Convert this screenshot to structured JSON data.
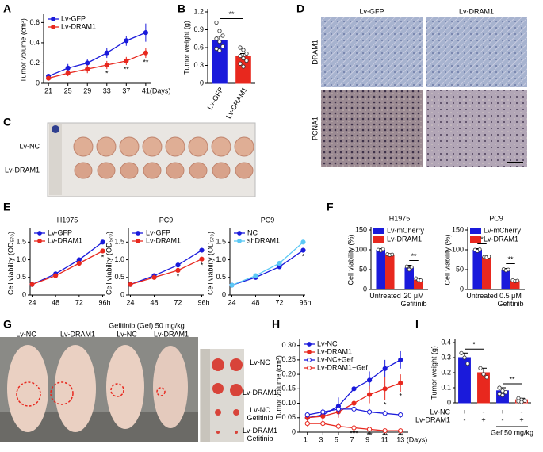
{
  "panel_letters": [
    "A",
    "B",
    "C",
    "D",
    "E",
    "F",
    "G",
    "H",
    "I"
  ],
  "chart_data": [
    {
      "type": "line",
      "ylabel": "Tumor volume (cm³)",
      "x": [
        21,
        25,
        29,
        33,
        37,
        41
      ],
      "xlim": [
        20,
        42
      ],
      "xticks": [
        21,
        25,
        29,
        33,
        37,
        {
          "value": 41,
          "label": "41(Days)"
        }
      ],
      "ylim": [
        0,
        0.65
      ],
      "yticks": [
        0,
        0.2,
        0.4,
        0.6
      ],
      "legend": "upper left",
      "series": [
        {
          "name": "Lv-GFP",
          "color": "#1a1adb",
          "marker": "filled",
          "values": [
            0.07,
            0.15,
            0.2,
            0.3,
            0.42,
            0.5
          ],
          "errors": [
            0.02,
            0.04,
            0.04,
            0.05,
            0.05,
            0.09
          ]
        },
        {
          "name": "Lv-DRAM1",
          "color": "#e8281e",
          "marker": "filled",
          "values": [
            0.05,
            0.1,
            0.14,
            0.18,
            0.22,
            0.3
          ],
          "errors": [
            0.02,
            0.03,
            0.04,
            0.04,
            0.04,
            0.05
          ]
        }
      ],
      "annotations": [
        {
          "text": "*",
          "x": 33,
          "series": 1
        },
        {
          "text": "**",
          "x": 37,
          "series": 1
        },
        {
          "text": "**",
          "x": 41,
          "series": 1
        }
      ]
    },
    {
      "type": "bar",
      "ylabel": "Tumor weight (g)",
      "categories": [
        "Lv-GFP",
        "Lv-DRAM1"
      ],
      "values": [
        0.72,
        0.45
      ],
      "errors": [
        0.07,
        0.05
      ],
      "colors": [
        "#1a1adb",
        "#e8281e"
      ],
      "open": [
        false,
        false
      ],
      "points": [
        [
          1.02,
          0.88,
          0.8,
          0.75,
          0.7,
          0.62,
          0.58,
          0.55
        ],
        [
          0.6,
          0.56,
          0.5,
          0.46,
          0.42,
          0.38,
          0.33,
          0.28
        ]
      ],
      "ylim": [
        0,
        1.2
      ],
      "yticks": [
        0,
        0.3,
        0.6,
        0.9,
        1.2
      ],
      "annotations": [
        {
          "text": "**",
          "between": [
            0,
            1
          ]
        }
      ]
    },
    {
      "type": "line",
      "title": "H1975",
      "ylabel": "Cell viability (OD₅₇₀)",
      "x": [
        24,
        48,
        72,
        96
      ],
      "xlim": [
        22,
        98
      ],
      "xticks": [
        24,
        48,
        72,
        {
          "value": 96,
          "label": "96h"
        }
      ],
      "ylim": [
        0,
        1.8
      ],
      "yticks": [
        0,
        0.5,
        {
          "value": 1,
          "label": "1.0"
        },
        1.5
      ],
      "legend": "upper left",
      "series": [
        {
          "name": "Lv-GFP",
          "color": "#1a1adb",
          "marker": "filled",
          "values": [
            0.3,
            0.6,
            1.0,
            1.5
          ],
          "errors": [
            0.02,
            0.03,
            0.05,
            0.06
          ]
        },
        {
          "name": "Lv-DRAM1",
          "color": "#e8281e",
          "marker": "filled",
          "values": [
            0.3,
            0.55,
            0.9,
            1.25
          ],
          "errors": [
            0.02,
            0.03,
            0.05,
            0.06
          ]
        }
      ],
      "annotations": [
        {
          "text": "*",
          "x": 96,
          "series": 1
        }
      ]
    },
    {
      "type": "line",
      "title": "PC9",
      "ylabel": "Cell viability (OD₅₇₀)",
      "x": [
        24,
        48,
        72,
        96
      ],
      "xlim": [
        22,
        98
      ],
      "xticks": [
        24,
        48,
        72,
        {
          "value": 96,
          "label": "96h"
        }
      ],
      "ylim": [
        0,
        1.8
      ],
      "yticks": [
        0,
        0.5,
        {
          "value": 1,
          "label": "1.0"
        },
        1.5
      ],
      "legend": "upper left",
      "series": [
        {
          "name": "Lv-GFP",
          "color": "#1a1adb",
          "marker": "filled",
          "values": [
            0.3,
            0.55,
            0.85,
            1.27
          ],
          "errors": [
            0.02,
            0.03,
            0.05,
            0.06
          ]
        },
        {
          "name": "Lv-DRAM1",
          "color": "#e8281e",
          "marker": "filled",
          "values": [
            0.3,
            0.5,
            0.7,
            1.02
          ],
          "errors": [
            0.02,
            0.03,
            0.05,
            0.06
          ]
        }
      ],
      "annotations": [
        {
          "text": "*",
          "x": 72,
          "series": 1
        },
        {
          "text": "*",
          "x": 96,
          "series": 1
        }
      ]
    },
    {
      "type": "line",
      "title": "PC9",
      "ylabel": "Cell viability (OD₅₇₀)",
      "x": [
        24,
        48,
        72,
        96
      ],
      "xlim": [
        22,
        98
      ],
      "xticks": [
        24,
        48,
        72,
        {
          "value": 96,
          "label": "96h"
        }
      ],
      "ylim": [
        0,
        1.8
      ],
      "yticks": [
        0,
        0.5,
        {
          "value": 1,
          "label": "1.0"
        },
        1.5
      ],
      "legend": "upper left",
      "series": [
        {
          "name": "NC",
          "color": "#1a1adb",
          "marker": "filled",
          "values": [
            0.28,
            0.5,
            0.8,
            1.27
          ],
          "errors": [
            0.02,
            0.03,
            0.05,
            0.06
          ]
        },
        {
          "name": "shDRAM1",
          "color": "#5bc8f5",
          "marker": "filled",
          "values": [
            0.28,
            0.55,
            0.9,
            1.5
          ],
          "errors": [
            0.02,
            0.03,
            0.05,
            0.06
          ]
        }
      ],
      "annotations": [
        {
          "text": "*",
          "x": 96,
          "series": 0
        }
      ]
    },
    {
      "type": "grouped_bar",
      "title": "H1975",
      "ylabel": "Cell viability (%)",
      "categories": [
        "Untreated",
        "20 μM\nGefitinib"
      ],
      "ylim": [
        0,
        150
      ],
      "yticks": [
        0,
        50,
        100,
        150
      ],
      "legend": "upper left",
      "series": [
        {
          "name": "Lv-mCherry",
          "color": "#1a1adb",
          "values": [
            100,
            55
          ],
          "errors": [
            3,
            6
          ],
          "points": [
            [
              100,
              98,
              102
            ],
            [
              58,
              50,
              56
            ]
          ]
        },
        {
          "name": "Lv-DRAM1",
          "color": "#e8281e",
          "values": [
            88,
            25
          ],
          "errors": [
            2,
            3
          ],
          "points": [
            [
              89,
              87,
              88
            ],
            [
              28,
              24,
              23
            ]
          ]
        }
      ],
      "annotations": [
        {
          "text": "**",
          "category": 1
        }
      ]
    },
    {
      "type": "grouped_bar",
      "title": "PC9",
      "ylabel": "Cell viability (%)",
      "categories": [
        "Untreated",
        "0.5 μM\nGefitinib"
      ],
      "ylim": [
        0,
        150
      ],
      "yticks": [
        0,
        50,
        100,
        150
      ],
      "legend": "upper left",
      "series": [
        {
          "name": "Lv-mCherry",
          "color": "#1a1adb",
          "values": [
            100,
            50
          ],
          "errors": [
            3,
            3
          ],
          "points": [
            [
              100,
              97,
              101
            ],
            [
              51,
              48,
              50
            ]
          ]
        },
        {
          "name": "Lv-DRAM1",
          "color": "#e8281e",
          "values": [
            82,
            22
          ],
          "errors": [
            2,
            2
          ],
          "points": [
            [
              82,
              81,
              83
            ],
            [
              23,
              21,
              22
            ]
          ]
        }
      ],
      "annotations": [
        {
          "text": "*",
          "category": 0
        },
        {
          "text": "**",
          "category": 1
        }
      ]
    },
    {
      "type": "line",
      "ylabel": "Tumor volume (cm³)",
      "x": [
        1,
        3,
        5,
        7,
        9,
        11,
        13
      ],
      "xlim": [
        0,
        14
      ],
      "xticks": [
        1,
        3,
        5,
        7,
        9,
        11,
        {
          "value": 13,
          "label": "13 (Days)"
        }
      ],
      "ylim": [
        0,
        0.31
      ],
      "yticks": [
        0,
        0.05,
        {
          "value": 0.1,
          "label": "0.10"
        },
        0.15,
        {
          "value": 0.2,
          "label": "0.20"
        },
        0.25,
        {
          "value": 0.3,
          "label": "0.30"
        }
      ],
      "legend": "upper left",
      "series": [
        {
          "name": "Lv-NC",
          "color": "#1a1adb",
          "marker": "filled",
          "values": [
            0.05,
            0.06,
            0.09,
            0.15,
            0.18,
            0.22,
            0.25
          ],
          "errors": [
            0.01,
            0.02,
            0.03,
            0.04,
            0.03,
            0.03,
            0.03
          ]
        },
        {
          "name": "Lv-DRAM1",
          "color": "#e8281e",
          "marker": "filled",
          "values": [
            0.05,
            0.055,
            0.07,
            0.1,
            0.13,
            0.15,
            0.17
          ],
          "errors": [
            0.01,
            0.02,
            0.02,
            0.03,
            0.03,
            0.04,
            0.03
          ]
        },
        {
          "name": "Lv-NC+Gef",
          "color": "#1a1adb",
          "marker": "open",
          "values": [
            0.06,
            0.07,
            0.08,
            0.08,
            0.07,
            0.065,
            0.06
          ],
          "errors": [
            0.01,
            0.01,
            0.02,
            0.02,
            0.01,
            0.01,
            0.01
          ]
        },
        {
          "name": "Lv-DRAM1+Gef",
          "color": "#e8281e",
          "marker": "open",
          "values": [
            0.03,
            0.03,
            0.02,
            0.015,
            0.01,
            0.005,
            0.005
          ],
          "errors": [
            0.01,
            0.01,
            0.01,
            0.005,
            0.005,
            0.003,
            0.003
          ]
        }
      ],
      "annotations": [
        {
          "text": "*",
          "x": 11,
          "series": 1
        },
        {
          "text": "*",
          "x": 13,
          "series": 1
        },
        {
          "text": "***",
          "x": 7,
          "series": 3
        },
        {
          "text": "**",
          "x": 9,
          "series": 3
        },
        {
          "text": "**",
          "x": 11,
          "series": 3
        },
        {
          "text": "**",
          "x": 13,
          "series": 3
        }
      ]
    },
    {
      "type": "bar",
      "ylabel": "Tumor weight (g)",
      "categories": [
        null,
        null,
        null,
        null
      ],
      "values": [
        0.3,
        0.2,
        0.08,
        0.02
      ],
      "errors": [
        0.03,
        0.03,
        0.02,
        0.01
      ],
      "colors": [
        "#1a1adb",
        "#e8281e",
        "#1a1adb",
        "#e8281e"
      ],
      "open": [
        false,
        false,
        false,
        true
      ],
      "points": [
        [
          0.33,
          0.3,
          0.26
        ],
        [
          0.23,
          0.19,
          0.17
        ],
        [
          0.1,
          0.08,
          0.07,
          0.06,
          0.05
        ],
        [
          0.03,
          0.02,
          0.015,
          0.01,
          0.005
        ]
      ],
      "ylim": [
        0,
        0.4
      ],
      "yticks": [
        0,
        0.1,
        0.2,
        0.3,
        0.4
      ],
      "annotations": [
        {
          "text": "*",
          "between": [
            0,
            1
          ]
        },
        {
          "text": "**",
          "between": [
            2,
            3
          ]
        }
      ],
      "x_table": {
        "rows": [
          {
            "label": "Lv-NC",
            "cells": [
              "+",
              "-",
              "+",
              "-"
            ]
          },
          {
            "label": "Lv-DRAM1",
            "cells": [
              "-",
              "+",
              "-",
              "+"
            ]
          }
        ],
        "group_label": "Gef 50 mg/kg"
      }
    }
  ],
  "photo_C": {
    "rows": [
      "Lv-NC",
      "Lv-DRAM1"
    ]
  },
  "photo_D": {
    "columns": [
      "Lv-GFP",
      "Lv-DRAM1"
    ],
    "rows": [
      "DRAM1",
      "PCNA1"
    ]
  },
  "photo_G": {
    "title": "Gefitinib (Gef) 50 mg/kg",
    "mice": [
      "Lv-NC",
      "Lv-DRAM1",
      "Lv-NC",
      "Lv-DRAM1"
    ],
    "tumors": [
      "Lv-NC",
      "Lv-DRAM1",
      "Lv-NC\nGefitinib",
      "Lv-DRAM1\nGefitinib"
    ]
  }
}
